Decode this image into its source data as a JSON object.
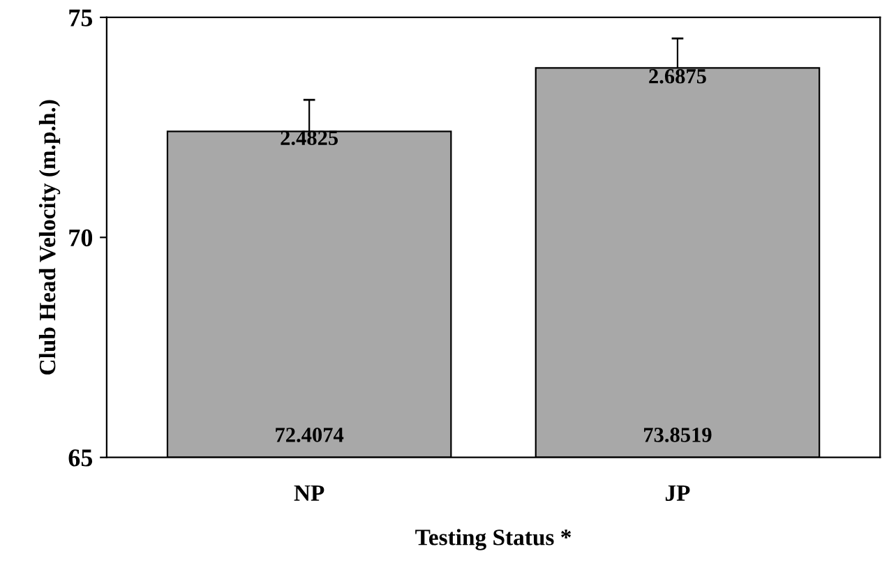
{
  "chart_data": {
    "type": "bar",
    "xlabel": "Testing Status *",
    "ylabel": "Club Head Velocity (m.p.h.)",
    "categories": [
      "NP",
      "JP"
    ],
    "values": [
      72.4074,
      73.8519
    ],
    "value_labels": [
      "72.4074",
      "73.8519"
    ],
    "errors": [
      0.72,
      0.67
    ],
    "color": "#a8a8a8",
    "ylim": [
      65,
      75
    ],
    "yticks": [
      65,
      70,
      75
    ],
    "grid": false,
    "legend": false,
    "annotations": [
      {
        "text": "2.4825",
        "x": "NP",
        "y": 72.0
      },
      {
        "text": "2.6875",
        "x": "JP",
        "y": 73.4
      }
    ]
  }
}
